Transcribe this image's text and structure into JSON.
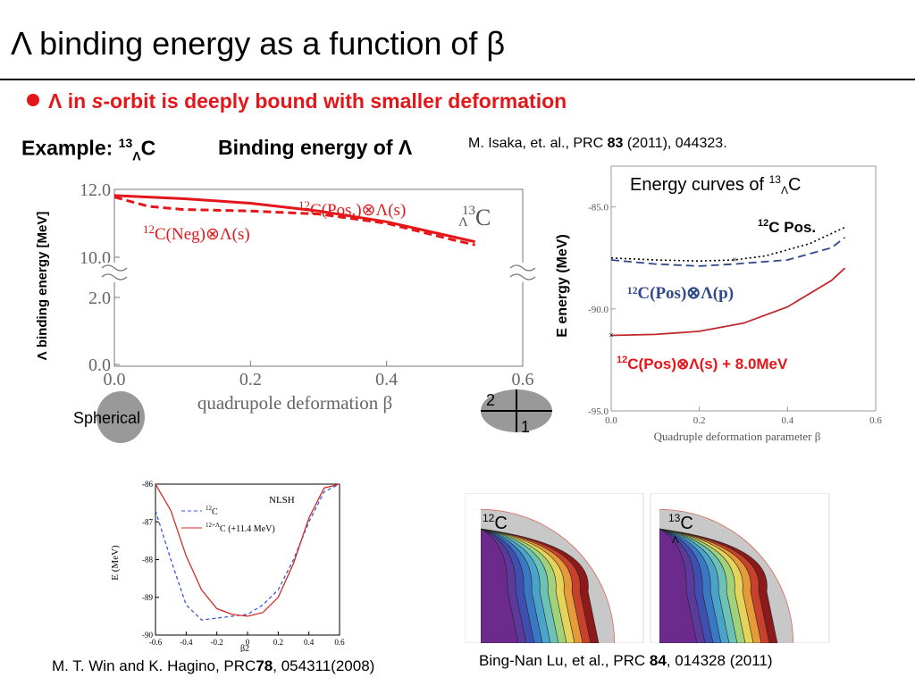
{
  "slide": {
    "title": "Λ binding energy as a function of β",
    "bullet": {
      "lambda": "Λ",
      "in": " in ",
      "s": "s",
      "rest": "-orbit  is deeply bound with smaller deformation"
    },
    "example": {
      "label": "Example: ",
      "mass": "13",
      "sub": "Λ",
      "elem": "C"
    },
    "be_header": {
      "text": "Binding energy of ",
      "lambda": "Λ"
    },
    "ref_isaka": {
      "pre": "M. Isaka, et. al., PRC ",
      "vol": "83",
      "post": " (2011), 044323."
    },
    "spherical": "Spherical",
    "ellipse_labels": {
      "axis2": "2",
      "axis1": "1"
    },
    "ref_win": {
      "pre": "M. T. Win and K. Hagino, PRC",
      "vol": "78",
      "post": ", 054311(2008)"
    },
    "ref_lu": {
      "pre": "Bing-Nan Lu, et al., PRC ",
      "vol": "84",
      "post": ", 014328 (2011)"
    }
  },
  "chart_data": [
    {
      "type": "line",
      "ylabel": "Λ binding energy [MeV]",
      "xlabel": "quadrupole deformation β",
      "x_ticks": [
        "0.0",
        "0.2",
        "0.4",
        "0.6"
      ],
      "y_ticks_upper": [
        "12.0",
        "10.0"
      ],
      "y_ticks_lower": [
        "2.0",
        "0.0"
      ],
      "xlim": [
        0,
        0.6
      ],
      "ylim_upper": [
        9.8,
        12.0
      ],
      "nucleus": {
        "mass": "13",
        "sub": "Λ",
        "elem": "C"
      },
      "series": [
        {
          "name": "12C(Pos.)⊗Λ(s)",
          "style": "solid",
          "color": "#e4161a",
          "x": [
            0.0,
            0.1,
            0.2,
            0.3,
            0.4,
            0.5,
            0.53
          ],
          "y": [
            11.8,
            11.7,
            11.55,
            11.3,
            10.95,
            10.45,
            10.3
          ]
        },
        {
          "name": "12C(Neg)⊗Λ(s)",
          "style": "dashed",
          "color": "#e4161a",
          "x": [
            0.0,
            0.05,
            0.1,
            0.2,
            0.3,
            0.4,
            0.5,
            0.53
          ],
          "y": [
            11.75,
            11.45,
            11.35,
            11.3,
            11.2,
            10.9,
            10.35,
            10.2
          ]
        }
      ],
      "labels": {
        "pos": {
          "mass": "12",
          "text": "C(Pos.)⊗Λ(s)"
        },
        "neg": {
          "mass": "12",
          "text": "C(Neg)⊗Λ(s)"
        }
      }
    },
    {
      "type": "line",
      "title": {
        "pre": "Energy curves of ",
        "mass": "13",
        "sub": "Λ",
        "elem": "C"
      },
      "ylabel": "E energy (MeV)",
      "xlabel": "Quadruple deformation parameter β",
      "x_ticks": [
        "0.0",
        "0.2",
        "0.4",
        "0.6"
      ],
      "y_ticks": [
        "-85.0",
        "-90.0",
        "-95.0"
      ],
      "xlim": [
        0,
        0.6
      ],
      "ylim": [
        -95,
        -83
      ],
      "series": [
        {
          "name": "12C Pos.",
          "style": "dotted",
          "color": "#000000",
          "x": [
            0.0,
            0.1,
            0.2,
            0.28,
            0.35,
            0.45,
            0.53
          ],
          "y": [
            -87.5,
            -87.6,
            -87.65,
            -87.6,
            -87.4,
            -86.8,
            -86.0
          ]
        },
        {
          "name": "12C(Pos)⊗Λ(p)",
          "style": "dashed",
          "color": "#2f4a8a",
          "x": [
            0.0,
            0.1,
            0.2,
            0.28,
            0.4,
            0.5,
            0.53
          ],
          "y": [
            -87.6,
            -87.8,
            -87.9,
            -87.8,
            -87.6,
            -87.0,
            -86.5
          ]
        },
        {
          "name": "12C(Pos)⊗Λ(s) + 8.0MeV",
          "style": "solid",
          "color": "#c0282c",
          "x": [
            0.0,
            0.1,
            0.2,
            0.3,
            0.4,
            0.5,
            0.53
          ],
          "y": [
            -91.3,
            -91.25,
            -91.1,
            -90.7,
            -89.9,
            -88.6,
            -88.0
          ]
        }
      ],
      "labels": {
        "pos": {
          "mass": "12",
          "text": "C Pos."
        },
        "p": {
          "text": "¹²C(Pos)⊗Λ(p)"
        },
        "s": {
          "mass": "12",
          "text": "C(Pos)⊗Λ(s) + 8.0MeV"
        }
      }
    },
    {
      "type": "line",
      "legend_title": "NLSH",
      "ylabel": "E   (MeV)",
      "xlabel": "β2",
      "x_ticks": [
        "-0.6",
        "-0.4",
        "-0.2",
        "0",
        "0.2",
        "0.4",
        "0.6"
      ],
      "y_ticks": [
        "-86",
        "-87",
        "-88",
        "-89",
        "-90"
      ],
      "xlim": [
        -0.6,
        0.6
      ],
      "ylim": [
        -90,
        -86
      ],
      "series": [
        {
          "name": "12C",
          "style": "dashed",
          "color": "#3b5bd6",
          "x": [
            -0.6,
            -0.5,
            -0.4,
            -0.3,
            -0.2,
            -0.1,
            0.0,
            0.1,
            0.2,
            0.3,
            0.4,
            0.5,
            0.6
          ],
          "y": [
            -86.7,
            -88.0,
            -89.2,
            -89.6,
            -89.55,
            -89.5,
            -89.45,
            -89.2,
            -88.8,
            -88.0,
            -87.0,
            -86.2,
            -86.0
          ]
        },
        {
          "name": "12+ΛC (+11.4 MeV)",
          "style": "solid",
          "color": "#d42a2a",
          "x": [
            -0.6,
            -0.5,
            -0.4,
            -0.3,
            -0.2,
            -0.1,
            0.0,
            0.1,
            0.2,
            0.3,
            0.4,
            0.5,
            0.6
          ],
          "y": [
            -86.0,
            -86.7,
            -87.9,
            -88.8,
            -89.3,
            -89.45,
            -89.5,
            -89.4,
            -89.0,
            -88.1,
            -86.9,
            -86.1,
            -86.0
          ]
        }
      ],
      "legend": [
        {
          "mass": "12",
          "text": "C"
        },
        {
          "mass": "12+Λ",
          "text": "C (+11.4 MeV)"
        }
      ]
    }
  ],
  "contour_panels": [
    {
      "mass": "12",
      "elem": "C"
    },
    {
      "mass": "13",
      "sub": "Λ",
      "elem": "C"
    }
  ],
  "colors": {
    "accent_red": "#e4161a",
    "axis_gray": "#666666"
  }
}
